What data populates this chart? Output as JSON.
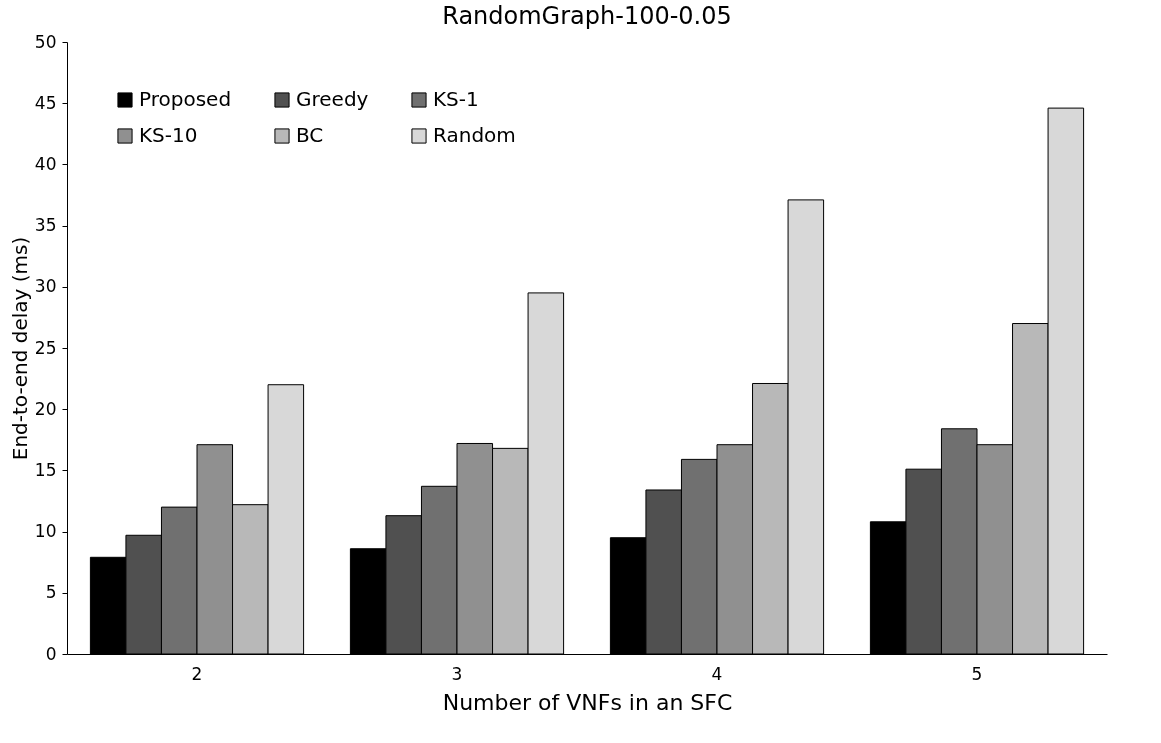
{
  "chart_data": {
    "type": "bar",
    "title": "RandomGraph-100-0.05",
    "xlabel": "Number of VNFs in an SFC",
    "ylabel": "End-to-end delay (ms)",
    "categories": [
      "2",
      "3",
      "4",
      "5"
    ],
    "series": [
      {
        "name": "Proposed",
        "color": "#000000",
        "values": [
          7.9,
          8.6,
          9.5,
          10.8
        ]
      },
      {
        "name": "Greedy",
        "color": "#505050",
        "values": [
          9.7,
          11.3,
          13.4,
          15.1
        ]
      },
      {
        "name": "KS-1",
        "color": "#707070",
        "values": [
          12.0,
          13.7,
          15.9,
          18.4
        ]
      },
      {
        "name": "KS-10",
        "color": "#909090",
        "values": [
          17.1,
          17.2,
          17.1,
          17.1
        ]
      },
      {
        "name": "BC",
        "color": "#b8b8b8",
        "values": [
          12.2,
          16.8,
          22.1,
          27.0
        ]
      },
      {
        "name": "Random",
        "color": "#d8d8d8",
        "values": [
          22.0,
          29.5,
          37.1,
          44.6
        ]
      }
    ],
    "ylim": [
      0,
      50
    ],
    "yticks": [
      0,
      5,
      10,
      15,
      20,
      25,
      30,
      35,
      40,
      45,
      50
    ],
    "grid": false,
    "legend": "top left"
  }
}
